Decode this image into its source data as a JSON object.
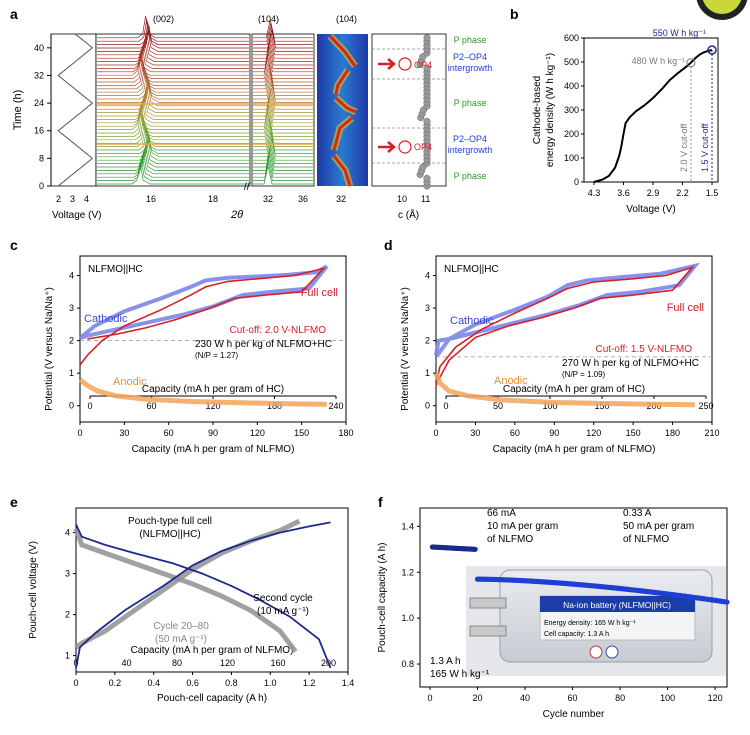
{
  "figure": {
    "panel_labels": [
      "a",
      "b",
      "c",
      "d",
      "e",
      "f"
    ],
    "colors": {
      "full_cell": "#d42026",
      "cathodic": "#7b86e8",
      "anodic": "#f2a55a",
      "navy": "#1a2a8f",
      "gray": "#8a8a8a",
      "blue": "#1f3fd6",
      "green": "#2e9a2e"
    }
  },
  "panel_a": {
    "time_axis_label": "Time (h)",
    "time_ticks": [
      "0",
      "8",
      "16",
      "24",
      "32",
      "40"
    ],
    "voltage_axis_label": "Voltage (V)",
    "voltage_ticks": [
      "2",
      "3",
      "4"
    ],
    "two_theta_label": "2θ",
    "two_theta_ticks_left": [
      "16",
      "18"
    ],
    "two_theta_ticks_right": [
      "32",
      "36"
    ],
    "map_tick": "32",
    "c_axis_label": "c (Å)",
    "c_ticks": [
      "10",
      "11"
    ],
    "peak_labels": {
      "p002": "(002)",
      "p104a": "(104)",
      "p104b": "(104)"
    },
    "op4_label": "OP4",
    "phases": [
      "P phase",
      "P2–OP4",
      "intergrowth",
      "P phase",
      "P2–OP4",
      "intergrowth",
      "P phase"
    ]
  },
  "chart_data": [
    {
      "panel": "b",
      "type": "line",
      "xlabel": "Voltage (V)",
      "ylabel_lines": [
        "Cathode-based",
        "energy density (W h kg⁻¹)"
      ],
      "x_ticks": [
        "4.3",
        "3.6",
        "2.9",
        "2.2",
        "1.5"
      ],
      "y_ticks": [
        "0",
        "100",
        "200",
        "300",
        "400",
        "500",
        "600"
      ],
      "xlim": [
        4.3,
        1.5
      ],
      "ylim": [
        0,
        600
      ],
      "series": [
        {
          "name": "energy",
          "x": [
            4.3,
            4.1,
            3.95,
            3.8,
            3.7,
            3.65,
            3.6,
            3.55,
            3.45,
            3.3,
            3.1,
            2.9,
            2.7,
            2.5,
            2.3,
            2.1,
            2.0,
            1.9,
            1.8,
            1.7,
            1.6,
            1.5
          ],
          "y": [
            0,
            10,
            25,
            60,
            110,
            150,
            200,
            245,
            270,
            295,
            320,
            350,
            385,
            425,
            455,
            482,
            497,
            515,
            530,
            540,
            546,
            550
          ]
        }
      ],
      "annotations": {
        "e480": "480 W h kg⁻¹",
        "e550": "550 W h kg⁻¹",
        "cut20": "2.0 V cut-off",
        "cut15": "1.5 V cut-off"
      }
    },
    {
      "panel": "c",
      "type": "line",
      "legend_title": "NLFMO||HC",
      "ylabel": "Potential (V versus Na/Na⁺)",
      "top_xlabel": "Capacity (mA h per gram of HC)",
      "top_ticks": [
        "0",
        "60",
        "120",
        "180",
        "240"
      ],
      "bottom_xlabel": "Capacity (mA h per gram of NLFMO)",
      "bottom_ticks": [
        "0",
        "30",
        "60",
        "90",
        "120",
        "150",
        "180"
      ],
      "y_ticks": [
        "0",
        "1",
        "2",
        "3",
        "4"
      ],
      "xlim": [
        0,
        180
      ],
      "ylim": [
        -0.5,
        4.6
      ],
      "series": [
        {
          "name": "Cathodic",
          "charge": [
            [
              0,
              2.08
            ],
            [
              10,
              2.45
            ],
            [
              30,
              2.9
            ],
            [
              55,
              3.3
            ],
            [
              75,
              3.65
            ],
            [
              85,
              3.85
            ],
            [
              100,
              3.93
            ],
            [
              120,
              3.97
            ],
            [
              140,
              4.02
            ],
            [
              160,
              4.1
            ],
            [
              167,
              4.28
            ]
          ],
          "discharge": [
            [
              167,
              4.28
            ],
            [
              155,
              3.6
            ],
            [
              130,
              3.5
            ],
            [
              110,
              3.4
            ],
            [
              90,
              3.05
            ],
            [
              70,
              2.8
            ],
            [
              50,
              2.6
            ],
            [
              25,
              2.35
            ],
            [
              5,
              2.15
            ],
            [
              0,
              2.08
            ]
          ]
        },
        {
          "name": "Full cell",
          "charge": [
            [
              0,
              1.25
            ],
            [
              5,
              1.55
            ],
            [
              15,
              2.0
            ],
            [
              30,
              2.45
            ],
            [
              55,
              2.95
            ],
            [
              75,
              3.4
            ],
            [
              85,
              3.65
            ],
            [
              100,
              3.82
            ],
            [
              120,
              3.9
            ],
            [
              145,
              4.0
            ],
            [
              165,
              4.22
            ]
          ],
          "discharge": [
            [
              165,
              4.22
            ],
            [
              150,
              3.5
            ],
            [
              125,
              3.4
            ],
            [
              105,
              3.3
            ],
            [
              85,
              2.95
            ],
            [
              65,
              2.65
            ],
            [
              45,
              2.4
            ],
            [
              25,
              2.2
            ],
            [
              5,
              2.05
            ]
          ]
        },
        {
          "name": "Anodic",
          "points": [
            [
              0,
              0.8
            ],
            [
              5,
              0.62
            ],
            [
              12,
              0.45
            ],
            [
              25,
              0.3
            ],
            [
              45,
              0.2
            ],
            [
              75,
              0.13
            ],
            [
              110,
              0.09
            ],
            [
              140,
              0.06
            ],
            [
              167,
              0.04
            ]
          ]
        }
      ],
      "labels": {
        "cathodic": "Cathodic",
        "full": "Full cell",
        "anodic": "Anodic",
        "cutoff": "Cut-off: 2.0 V-NLFMO",
        "energy": "230 W h per kg of NLFMO+HC",
        "np": "(N/P = 1.27)"
      },
      "ref_line": 2.0
    },
    {
      "panel": "d",
      "type": "line",
      "legend_title": "NLFMO||HC",
      "ylabel": "Potential (V versus Na/Na⁺)",
      "top_xlabel": "Capacity (mA h per gram of HC)",
      "top_ticks": [
        "0",
        "50",
        "100",
        "150",
        "200",
        "250"
      ],
      "bottom_xlabel": "Capacity (mA h per gram of NLFMO)",
      "bottom_ticks": [
        "0",
        "30",
        "60",
        "90",
        "120",
        "150",
        "180",
        "210"
      ],
      "y_ticks": [
        "0",
        "1",
        "2",
        "3",
        "4"
      ],
      "xlim": [
        0,
        210
      ],
      "ylim": [
        -0.5,
        4.6
      ],
      "series": [
        {
          "name": "Cathodic",
          "charge": [
            [
              0,
              1.55
            ],
            [
              2,
              2.0
            ],
            [
              10,
              2.05
            ],
            [
              30,
              2.5
            ],
            [
              60,
              2.95
            ],
            [
              85,
              3.35
            ],
            [
              100,
              3.7
            ],
            [
              115,
              3.85
            ],
            [
              140,
              3.95
            ],
            [
              170,
              4.05
            ],
            [
              197,
              4.3
            ]
          ],
          "discharge": [
            [
              197,
              4.3
            ],
            [
              185,
              3.7
            ],
            [
              155,
              3.5
            ],
            [
              130,
              3.4
            ],
            [
              110,
              3.1
            ],
            [
              85,
              2.8
            ],
            [
              60,
              2.55
            ],
            [
              30,
              2.25
            ],
            [
              10,
              2.05
            ],
            [
              2,
              1.6
            ],
            [
              0,
              1.55
            ]
          ]
        },
        {
          "name": "Full cell",
          "charge": [
            [
              0,
              0.6
            ],
            [
              3,
              1.2
            ],
            [
              15,
              1.8
            ],
            [
              35,
              2.35
            ],
            [
              60,
              2.85
            ],
            [
              85,
              3.3
            ],
            [
              100,
              3.6
            ],
            [
              120,
              3.8
            ],
            [
              150,
              3.9
            ],
            [
              175,
              4.0
            ],
            [
              195,
              4.25
            ]
          ],
          "discharge": [
            [
              195,
              4.25
            ],
            [
              180,
              3.55
            ],
            [
              150,
              3.4
            ],
            [
              125,
              3.3
            ],
            [
              105,
              3.0
            ],
            [
              80,
              2.7
            ],
            [
              55,
              2.45
            ],
            [
              30,
              2.1
            ],
            [
              10,
              1.4
            ],
            [
              2,
              0.8
            ]
          ]
        },
        {
          "name": "Anodic",
          "points": [
            [
              0,
              1.0
            ],
            [
              3,
              0.7
            ],
            [
              10,
              0.45
            ],
            [
              25,
              0.3
            ],
            [
              50,
              0.18
            ],
            [
              90,
              0.1
            ],
            [
              140,
              0.06
            ],
            [
              197,
              0.03
            ]
          ]
        }
      ],
      "labels": {
        "cathodic": "Cathodic",
        "full": "Full cell",
        "anodic": "Anodic",
        "cutoff": "Cut-off: 1.5 V-NLFMO",
        "energy": "270 W h per kg of NLFMO+HC",
        "np": "(N/P = 1.09)"
      },
      "ref_line": 1.5
    },
    {
      "panel": "e",
      "type": "line",
      "ylabel": "Pouch-cell voltage (V)",
      "top_xlabel": "Capacity (mA h per gram of NLFMO)",
      "top_ticks": [
        "0",
        "40",
        "80",
        "120",
        "160",
        "200"
      ],
      "bottom_xlabel": "Pouch-cell capacity (A h)",
      "bottom_ticks": [
        "0",
        "0.2",
        "0.4",
        "0.6",
        "0.8",
        "1.0",
        "1.2",
        "1.4"
      ],
      "y_ticks": [
        "1",
        "2",
        "3",
        "4"
      ],
      "xlim": [
        0,
        1.4
      ],
      "ylim": [
        0.6,
        4.6
      ],
      "series": [
        {
          "name": "Second cycle",
          "charge": [
            [
              0,
              0.7
            ],
            [
              0.02,
              1.2
            ],
            [
              0.1,
              1.55
            ],
            [
              0.25,
              2.1
            ],
            [
              0.45,
              2.7
            ],
            [
              0.6,
              3.2
            ],
            [
              0.75,
              3.55
            ],
            [
              0.9,
              3.8
            ],
            [
              1.05,
              4.0
            ],
            [
              1.2,
              4.15
            ],
            [
              1.31,
              4.25
            ]
          ],
          "discharge": [
            [
              0,
              4.2
            ],
            [
              0.03,
              3.9
            ],
            [
              0.15,
              3.7
            ],
            [
              0.3,
              3.5
            ],
            [
              0.5,
              3.25
            ],
            [
              0.65,
              3.0
            ],
            [
              0.8,
              2.7
            ],
            [
              0.95,
              2.35
            ],
            [
              1.1,
              1.95
            ],
            [
              1.25,
              1.4
            ],
            [
              1.31,
              0.7
            ]
          ]
        },
        {
          "name": "Cycle 20–80",
          "charge": [
            [
              0,
              1.2
            ],
            [
              0.03,
              1.3
            ],
            [
              0.15,
              1.6
            ],
            [
              0.3,
              2.1
            ],
            [
              0.45,
              2.6
            ],
            [
              0.6,
              3.1
            ],
            [
              0.75,
              3.5
            ],
            [
              0.9,
              3.8
            ],
            [
              1.05,
              4.05
            ],
            [
              1.15,
              4.28
            ]
          ],
          "discharge": [
            [
              0,
              4.1
            ],
            [
              0.03,
              3.7
            ],
            [
              0.15,
              3.5
            ],
            [
              0.3,
              3.25
            ],
            [
              0.45,
              3.0
            ],
            [
              0.6,
              2.75
            ],
            [
              0.75,
              2.45
            ],
            [
              0.9,
              2.1
            ],
            [
              1.05,
              1.6
            ],
            [
              1.13,
              1.1
            ]
          ]
        }
      ],
      "labels": {
        "title1": "Pouch-type full cell",
        "title2": "(NLFMO||HC)",
        "second1": "Second cycle",
        "second2": "(10 mA g⁻¹)",
        "cyc1": "Cycle 20–80",
        "cyc2": "(50 mA g⁻¹)"
      }
    },
    {
      "panel": "f",
      "type": "scatter",
      "ylabel": "Pouch-cell capacity (A h)",
      "xlabel": "Cycle number",
      "x_ticks": [
        "0",
        "20",
        "40",
        "60",
        "80",
        "100",
        "120"
      ],
      "y_ticks": [
        "0.8",
        "1.0",
        "1.2",
        "1.4"
      ],
      "xlim": [
        0,
        125
      ],
      "ylim": [
        0.7,
        1.48
      ],
      "series": [
        {
          "name": "10 mA per gram",
          "x_start": 1,
          "x_end": 19,
          "y_start": 1.31,
          "y_end": 1.3
        },
        {
          "name": "50 mA per gram",
          "x_start": 20,
          "x_end": 125,
          "y_start": 1.17,
          "y_end": 1.07
        }
      ],
      "labels": {
        "i1": "66 mA",
        "r1a": "10 mA per gram",
        "r1b": "of NLFMO",
        "i2": "0.33 A",
        "r2a": "50 mA per gram",
        "r2b": "of NLFMO",
        "cap": "1.3 A h",
        "en": "165 W h kg⁻¹",
        "photo_title": "Na-ion battery (NLFMO||HC)",
        "photo_energy": "Energy density: 165 W h kg⁻¹",
        "photo_cap": "Cell capacity: 1.3 A h"
      }
    }
  ]
}
